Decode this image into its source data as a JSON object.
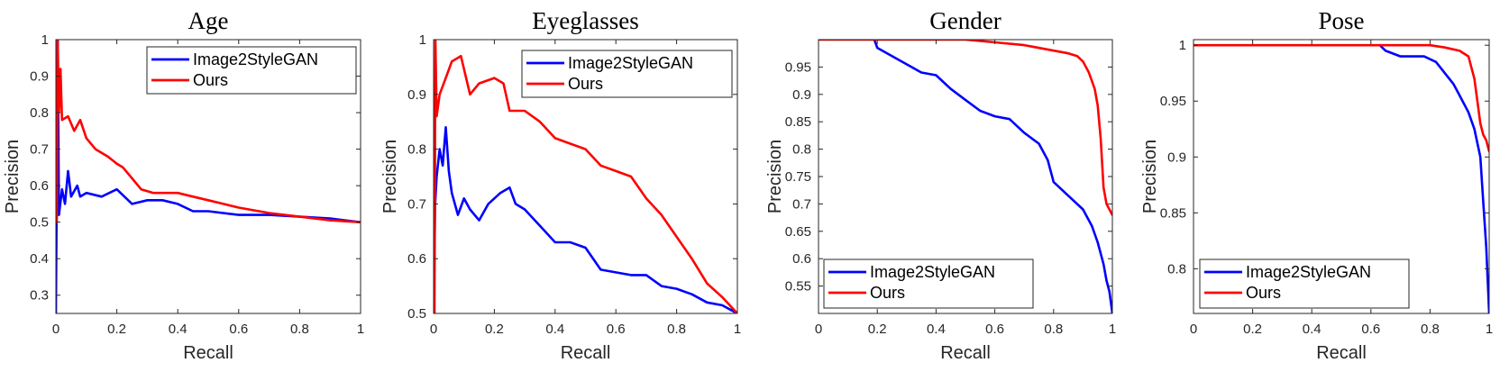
{
  "chart_data": [
    {
      "type": "line",
      "title": "Age",
      "xlabel": "Recall",
      "ylabel": "Precision",
      "xlim": [
        0,
        1
      ],
      "ylim": [
        0.25,
        1
      ],
      "xticks": [
        "0",
        "0.2",
        "0.4",
        "0.6",
        "0.8",
        "1"
      ],
      "yticks": [
        "0.3",
        "0.4",
        "0.5",
        "0.6",
        "0.7",
        "0.8",
        "0.9",
        "1"
      ],
      "legend_position": "top-right",
      "series": [
        {
          "name": "Image2StyleGAN",
          "color": "#0000ff",
          "points": [
            [
              0,
              0.25
            ],
            [
              0.003,
              0.6
            ],
            [
              0.006,
              1.0
            ],
            [
              0.01,
              0.52
            ],
            [
              0.02,
              0.59
            ],
            [
              0.03,
              0.55
            ],
            [
              0.04,
              0.64
            ],
            [
              0.05,
              0.57
            ],
            [
              0.07,
              0.6
            ],
            [
              0.08,
              0.57
            ],
            [
              0.1,
              0.58
            ],
            [
              0.15,
              0.57
            ],
            [
              0.2,
              0.59
            ],
            [
              0.25,
              0.55
            ],
            [
              0.3,
              0.56
            ],
            [
              0.35,
              0.56
            ],
            [
              0.4,
              0.55
            ],
            [
              0.45,
              0.53
            ],
            [
              0.5,
              0.53
            ],
            [
              0.6,
              0.52
            ],
            [
              0.7,
              0.52
            ],
            [
              0.8,
              0.515
            ],
            [
              0.9,
              0.51
            ],
            [
              1.0,
              0.5
            ]
          ]
        },
        {
          "name": "Ours",
          "color": "#ff0000",
          "points": [
            [
              0.003,
              0.5
            ],
            [
              0.006,
              1.0
            ],
            [
              0.01,
              0.8
            ],
            [
              0.015,
              0.92
            ],
            [
              0.02,
              0.78
            ],
            [
              0.04,
              0.79
            ],
            [
              0.06,
              0.75
            ],
            [
              0.08,
              0.78
            ],
            [
              0.1,
              0.73
            ],
            [
              0.13,
              0.7
            ],
            [
              0.17,
              0.68
            ],
            [
              0.2,
              0.66
            ],
            [
              0.22,
              0.65
            ],
            [
              0.25,
              0.62
            ],
            [
              0.28,
              0.59
            ],
            [
              0.32,
              0.58
            ],
            [
              0.36,
              0.58
            ],
            [
              0.4,
              0.58
            ],
            [
              0.45,
              0.57
            ],
            [
              0.5,
              0.56
            ],
            [
              0.55,
              0.55
            ],
            [
              0.6,
              0.54
            ],
            [
              0.7,
              0.525
            ],
            [
              0.8,
              0.515
            ],
            [
              0.9,
              0.505
            ],
            [
              1.0,
              0.5
            ]
          ]
        }
      ]
    },
    {
      "type": "line",
      "title": "Eyeglasses",
      "xlabel": "Recall",
      "ylabel": "Precision",
      "xlim": [
        0,
        1
      ],
      "ylim": [
        0.5,
        1
      ],
      "xticks": [
        "0",
        "0.2",
        "0.4",
        "0.6",
        "0.8",
        "1"
      ],
      "yticks": [
        "0.5",
        "0.6",
        "0.7",
        "0.8",
        "0.9",
        "1"
      ],
      "legend_position": "top-right",
      "series": [
        {
          "name": "Image2StyleGAN",
          "color": "#0000ff",
          "points": [
            [
              0,
              0.5
            ],
            [
              0.005,
              0.7
            ],
            [
              0.01,
              0.75
            ],
            [
              0.02,
              0.8
            ],
            [
              0.03,
              0.77
            ],
            [
              0.04,
              0.84
            ],
            [
              0.05,
              0.76
            ],
            [
              0.06,
              0.72
            ],
            [
              0.08,
              0.68
            ],
            [
              0.1,
              0.71
            ],
            [
              0.12,
              0.69
            ],
            [
              0.15,
              0.67
            ],
            [
              0.18,
              0.7
            ],
            [
              0.22,
              0.72
            ],
            [
              0.25,
              0.73
            ],
            [
              0.27,
              0.7
            ],
            [
              0.3,
              0.69
            ],
            [
              0.35,
              0.66
            ],
            [
              0.4,
              0.63
            ],
            [
              0.45,
              0.63
            ],
            [
              0.5,
              0.62
            ],
            [
              0.55,
              0.58
            ],
            [
              0.6,
              0.575
            ],
            [
              0.65,
              0.57
            ],
            [
              0.7,
              0.57
            ],
            [
              0.75,
              0.55
            ],
            [
              0.8,
              0.545
            ],
            [
              0.85,
              0.535
            ],
            [
              0.9,
              0.52
            ],
            [
              0.95,
              0.515
            ],
            [
              1.0,
              0.5
            ]
          ]
        },
        {
          "name": "Ours",
          "color": "#ff0000",
          "points": [
            [
              0.003,
              0.5
            ],
            [
              0.006,
              1.0
            ],
            [
              0.01,
              0.86
            ],
            [
              0.02,
              0.9
            ],
            [
              0.04,
              0.93
            ],
            [
              0.06,
              0.96
            ],
            [
              0.09,
              0.97
            ],
            [
              0.12,
              0.9
            ],
            [
              0.15,
              0.92
            ],
            [
              0.2,
              0.93
            ],
            [
              0.23,
              0.92
            ],
            [
              0.25,
              0.87
            ],
            [
              0.3,
              0.87
            ],
            [
              0.35,
              0.85
            ],
            [
              0.4,
              0.82
            ],
            [
              0.45,
              0.81
            ],
            [
              0.5,
              0.8
            ],
            [
              0.55,
              0.77
            ],
            [
              0.6,
              0.76
            ],
            [
              0.65,
              0.75
            ],
            [
              0.7,
              0.71
            ],
            [
              0.75,
              0.68
            ],
            [
              0.8,
              0.64
            ],
            [
              0.85,
              0.6
            ],
            [
              0.9,
              0.555
            ],
            [
              0.95,
              0.53
            ],
            [
              1.0,
              0.5
            ]
          ]
        }
      ]
    },
    {
      "type": "line",
      "title": "Gender",
      "xlabel": "Recall",
      "ylabel": "Precision",
      "xlim": [
        0,
        1
      ],
      "ylim": [
        0.5,
        1
      ],
      "xticks": [
        "0",
        "0.2",
        "0.4",
        "0.6",
        "0.8",
        "1"
      ],
      "yticks": [
        "0.55",
        "0.6",
        "0.65",
        "0.7",
        "0.75",
        "0.8",
        "0.85",
        "0.9",
        "0.95"
      ],
      "legend_position": "bottom-left",
      "series": [
        {
          "name": "Image2StyleGAN",
          "color": "#0000ff",
          "points": [
            [
              0.19,
              1.0
            ],
            [
              0.2,
              0.985
            ],
            [
              0.25,
              0.97
            ],
            [
              0.3,
              0.955
            ],
            [
              0.35,
              0.94
            ],
            [
              0.4,
              0.935
            ],
            [
              0.45,
              0.91
            ],
            [
              0.5,
              0.89
            ],
            [
              0.55,
              0.87
            ],
            [
              0.6,
              0.86
            ],
            [
              0.65,
              0.855
            ],
            [
              0.7,
              0.83
            ],
            [
              0.75,
              0.81
            ],
            [
              0.78,
              0.78
            ],
            [
              0.8,
              0.74
            ],
            [
              0.85,
              0.715
            ],
            [
              0.9,
              0.69
            ],
            [
              0.93,
              0.66
            ],
            [
              0.95,
              0.63
            ],
            [
              0.97,
              0.59
            ],
            [
              0.98,
              0.56
            ],
            [
              0.99,
              0.54
            ],
            [
              1.0,
              0.5
            ]
          ]
        },
        {
          "name": "Ours",
          "color": "#ff0000",
          "points": [
            [
              0,
              1.0
            ],
            [
              0.5,
              1.0
            ],
            [
              0.6,
              0.995
            ],
            [
              0.7,
              0.99
            ],
            [
              0.8,
              0.98
            ],
            [
              0.85,
              0.975
            ],
            [
              0.88,
              0.97
            ],
            [
              0.9,
              0.96
            ],
            [
              0.92,
              0.94
            ],
            [
              0.94,
              0.91
            ],
            [
              0.95,
              0.88
            ],
            [
              0.96,
              0.82
            ],
            [
              0.97,
              0.73
            ],
            [
              0.98,
              0.7
            ],
            [
              0.99,
              0.69
            ],
            [
              1.0,
              0.68
            ]
          ]
        }
      ]
    },
    {
      "type": "line",
      "title": "Pose",
      "xlabel": "Recall",
      "ylabel": "Precision",
      "xlim": [
        0,
        1
      ],
      "ylim": [
        0.76,
        1.005
      ],
      "xticks": [
        "0",
        "0.2",
        "0.4",
        "0.6",
        "0.8",
        "1"
      ],
      "yticks": [
        "0.8",
        "0.85",
        "0.9",
        "0.95",
        "1"
      ],
      "legend_position": "bottom-left",
      "series": [
        {
          "name": "Image2StyleGAN",
          "color": "#0000ff",
          "points": [
            [
              0.63,
              1.0
            ],
            [
              0.65,
              0.995
            ],
            [
              0.7,
              0.99
            ],
            [
              0.78,
              0.99
            ],
            [
              0.82,
              0.985
            ],
            [
              0.85,
              0.975
            ],
            [
              0.88,
              0.965
            ],
            [
              0.9,
              0.955
            ],
            [
              0.93,
              0.94
            ],
            [
              0.95,
              0.925
            ],
            [
              0.97,
              0.9
            ],
            [
              0.98,
              0.86
            ],
            [
              0.99,
              0.82
            ],
            [
              1.0,
              0.76
            ]
          ]
        },
        {
          "name": "Ours",
          "color": "#ff0000",
          "points": [
            [
              0,
              1.0
            ],
            [
              0.8,
              1.0
            ],
            [
              0.85,
              0.998
            ],
            [
              0.9,
              0.995
            ],
            [
              0.93,
              0.99
            ],
            [
              0.95,
              0.97
            ],
            [
              0.96,
              0.95
            ],
            [
              0.97,
              0.93
            ],
            [
              0.98,
              0.92
            ],
            [
              0.99,
              0.915
            ],
            [
              1.0,
              0.905
            ]
          ]
        }
      ]
    }
  ]
}
